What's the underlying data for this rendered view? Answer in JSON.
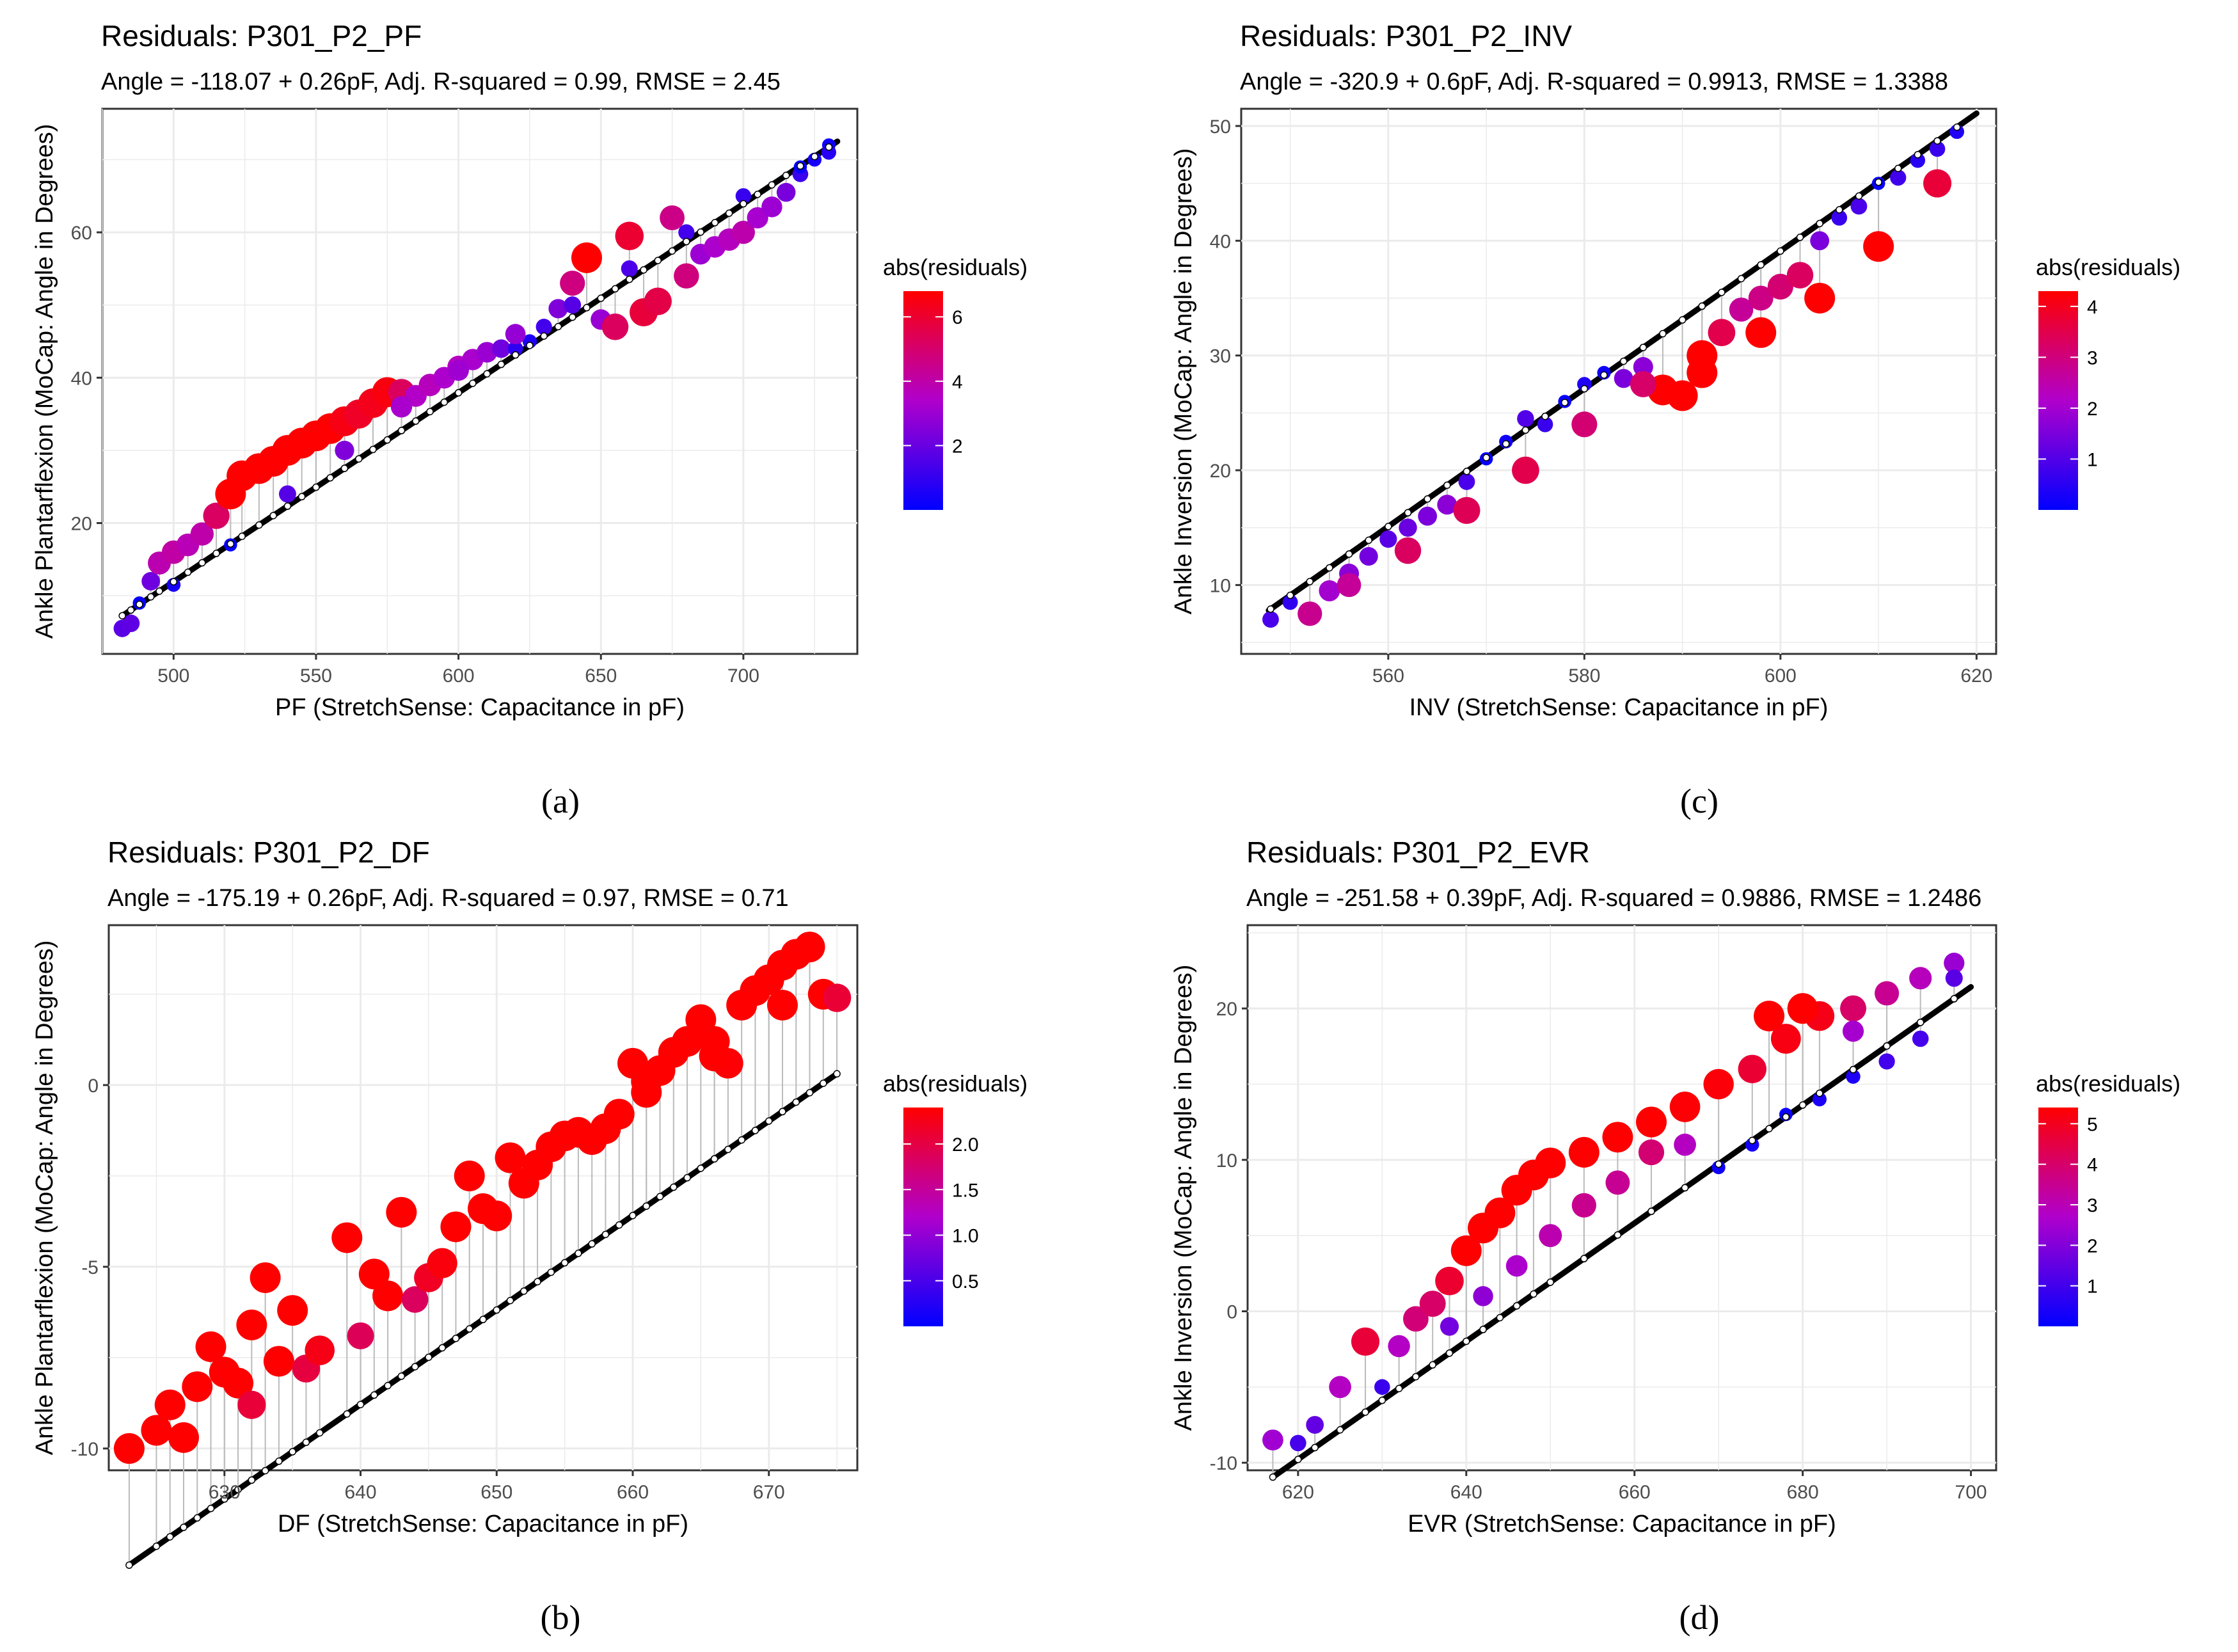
{
  "colors": {
    "low": "#0000FF",
    "mid": "#B000CC",
    "high": "#FF0000",
    "fit": "#000000",
    "grid": "#EBEBEB",
    "frame": "#333333"
  },
  "chart_data": [
    {
      "id": "a",
      "panel_label": "(a)",
      "type": "scatter",
      "title": "Residuals: P301_P2_PF",
      "subtitle": "Angle = -118.07 + 0.26pF, Adj. R-squared = 0.99, RMSE = 2.45",
      "xlabel": "PF (StretchSense: Capacitance in pF)",
      "ylabel": "Ankle Plantarflexion (MoCap: Angle in Degrees)",
      "xlim": [
        475,
        740
      ],
      "ylim": [
        2,
        77
      ],
      "xticks": [
        500,
        550,
        600,
        650,
        700
      ],
      "xtick_labels": [
        "500",
        "550",
        "600",
        "650",
        "700"
      ],
      "yticks": [
        20,
        40,
        60
      ],
      "ytick_labels": [
        "20",
        "40",
        "60"
      ],
      "fit": {
        "intercept": -118.07,
        "slope": 0.26,
        "x_range": [
          482,
          733
        ]
      },
      "legend": {
        "title": "abs(residuals)",
        "max": 6.8,
        "ticks": [
          2,
          4,
          6
        ],
        "tick_labels": [
          "2",
          "4",
          "6"
        ]
      },
      "points": [
        [
          482,
          5.5
        ],
        [
          485,
          6.2
        ],
        [
          488,
          9
        ],
        [
          492,
          12
        ],
        [
          495,
          14.5
        ],
        [
          500,
          16
        ],
        [
          505,
          17
        ],
        [
          510,
          18.5
        ],
        [
          515,
          21
        ],
        [
          520,
          24
        ],
        [
          524,
          26.5
        ],
        [
          530,
          27.5
        ],
        [
          535,
          28.5
        ],
        [
          540,
          30
        ],
        [
          545,
          31
        ],
        [
          550,
          32
        ],
        [
          555,
          33
        ],
        [
          560,
          34
        ],
        [
          565,
          35
        ],
        [
          570,
          36.5
        ],
        [
          575,
          38
        ],
        [
          580,
          38
        ],
        [
          585,
          37.5
        ],
        [
          590,
          39
        ],
        [
          595,
          40
        ],
        [
          600,
          41.5
        ],
        [
          605,
          42.5
        ],
        [
          610,
          43.5
        ],
        [
          615,
          44
        ],
        [
          620,
          44
        ],
        [
          625,
          45
        ],
        [
          630,
          47
        ],
        [
          635,
          49.5
        ],
        [
          640,
          53
        ],
        [
          645,
          56.5
        ],
        [
          650,
          48
        ],
        [
          655,
          47
        ],
        [
          660,
          59.5
        ],
        [
          665,
          49
        ],
        [
          670,
          50.5
        ],
        [
          675,
          62
        ],
        [
          680,
          54
        ],
        [
          685,
          57
        ],
        [
          690,
          58
        ],
        [
          695,
          59
        ],
        [
          700,
          60
        ],
        [
          705,
          62
        ],
        [
          710,
          63.5
        ],
        [
          715,
          65.5
        ],
        [
          720,
          68
        ],
        [
          725,
          70
        ],
        [
          730,
          72
        ],
        [
          500,
          11.5
        ],
        [
          520,
          17
        ],
        [
          540,
          24
        ],
        [
          560,
          30
        ],
        [
          580,
          36
        ],
        [
          600,
          41
        ],
        [
          620,
          46
        ],
        [
          640,
          50
        ],
        [
          660,
          55
        ],
        [
          680,
          60
        ],
        [
          700,
          65
        ],
        [
          720,
          69
        ],
        [
          730,
          71
        ]
      ]
    },
    {
      "id": "c",
      "panel_label": "(c)",
      "type": "scatter",
      "title": "Residuals: P301_P2_INV",
      "subtitle": "Angle = -320.9 + 0.6pF, Adj. R-squared = 0.9913, RMSE = 1.3388",
      "xlabel": "INV (StretchSense: Capacitance in pF)",
      "ylabel": "Ankle Inversion (MoCap: Angle in Degrees)",
      "xlim": [
        545,
        622
      ],
      "ylim": [
        4,
        51.5
      ],
      "xticks": [
        560,
        580,
        600,
        620
      ],
      "xtick_labels": [
        "560",
        "580",
        "600",
        "620"
      ],
      "yticks": [
        10,
        20,
        30,
        40,
        50
      ],
      "ytick_labels": [
        "10",
        "20",
        "30",
        "40",
        "50"
      ],
      "fit": {
        "intercept": -320.9,
        "slope": 0.6,
        "x_range": [
          547.8,
          620
        ]
      },
      "legend": {
        "title": "abs(residuals)",
        "max": 4.3,
        "ticks": [
          1,
          2,
          3,
          4
        ],
        "tick_labels": [
          "1",
          "2",
          "3",
          "4"
        ]
      },
      "points": [
        [
          548,
          7
        ],
        [
          550,
          8.5
        ],
        [
          552,
          7.5
        ],
        [
          554,
          9.5
        ],
        [
          556,
          11
        ],
        [
          558,
          12.5
        ],
        [
          560,
          14
        ],
        [
          562,
          15
        ],
        [
          564,
          16
        ],
        [
          566,
          17
        ],
        [
          568,
          19
        ],
        [
          570,
          21
        ],
        [
          572,
          22.5
        ],
        [
          574,
          24.5
        ],
        [
          576,
          24
        ],
        [
          578,
          26
        ],
        [
          580,
          27.5
        ],
        [
          582,
          28.5
        ],
        [
          584,
          28
        ],
        [
          586,
          29
        ],
        [
          588,
          27
        ],
        [
          590,
          26.5
        ],
        [
          592,
          30
        ],
        [
          594,
          32
        ],
        [
          596,
          34
        ],
        [
          598,
          35
        ],
        [
          600,
          36
        ],
        [
          602,
          37
        ],
        [
          604,
          40
        ],
        [
          606,
          42
        ],
        [
          608,
          43
        ],
        [
          610,
          45
        ],
        [
          612,
          45.5
        ],
        [
          614,
          47
        ],
        [
          616,
          48
        ],
        [
          618,
          49.5
        ],
        [
          556,
          10
        ],
        [
          562,
          13
        ],
        [
          568,
          16.5
        ],
        [
          574,
          20
        ],
        [
          580,
          24
        ],
        [
          586,
          27.5
        ],
        [
          592,
          28.5
        ],
        [
          598,
          32
        ],
        [
          604,
          35
        ],
        [
          610,
          39.5
        ],
        [
          616,
          45
        ]
      ]
    },
    {
      "id": "b",
      "panel_label": "(b)",
      "type": "scatter",
      "title": "Residuals: P301_P2_DF",
      "subtitle": "Angle = -175.19 + 0.26pF, Adj. R-squared = 0.97, RMSE = 0.71",
      "xlabel": "DF (StretchSense: Capacitance in pF)",
      "ylabel": "Ankle Plantarflexion (MoCap: Angle in Degrees)",
      "xlim": [
        621.5,
        676.5
      ],
      "ylim": [
        -10.6,
        4.4
      ],
      "xticks": [
        630,
        640,
        650,
        660,
        670
      ],
      "xtick_labels": [
        "630",
        "640",
        "650",
        "660",
        "670"
      ],
      "yticks": [
        -10,
        -5,
        0
      ],
      "ytick_labels": [
        "-10",
        "-5",
        "0"
      ],
      "fit": {
        "intercept": -175.19,
        "slope": 0.26,
        "x_range": [
          623,
          675
        ]
      },
      "legend": {
        "title": "abs(residuals)",
        "max": 2.4,
        "ticks": [
          0.5,
          1.0,
          1.5,
          2.0
        ],
        "tick_labels": [
          "0.5",
          "1.0",
          "1.5",
          "2.0"
        ]
      },
      "points": [
        [
          623,
          -10
        ],
        [
          625,
          -9.5
        ],
        [
          626,
          -8.8
        ],
        [
          627,
          -9.7
        ],
        [
          628,
          -8.3
        ],
        [
          629,
          -7.2
        ],
        [
          630,
          -7.9
        ],
        [
          631,
          -8.2
        ],
        [
          632,
          -8.8
        ],
        [
          633,
          -5.3
        ],
        [
          634,
          -7.6
        ],
        [
          635,
          -6.2
        ],
        [
          636,
          -7.8
        ],
        [
          637,
          -7.3
        ],
        [
          639,
          -4.2
        ],
        [
          640,
          -6.9
        ],
        [
          641,
          -5.2
        ],
        [
          642,
          -5.8
        ],
        [
          643,
          -3.5
        ],
        [
          644,
          -5.9
        ],
        [
          645,
          -5.3
        ],
        [
          646,
          -4.9
        ],
        [
          647,
          -3.9
        ],
        [
          648,
          -2.5
        ],
        [
          649,
          -3.4
        ],
        [
          650,
          -3.6
        ],
        [
          651,
          -2.0
        ],
        [
          652,
          -2.7
        ],
        [
          653,
          -2.2
        ],
        [
          654,
          -1.7
        ],
        [
          655,
          -1.4
        ],
        [
          656,
          -1.3
        ],
        [
          657,
          -1.5
        ],
        [
          658,
          -1.2
        ],
        [
          659,
          -0.8
        ],
        [
          660,
          0.6
        ],
        [
          661,
          -0.2
        ],
        [
          662,
          0.4
        ],
        [
          663,
          0.9
        ],
        [
          664,
          1.2
        ],
        [
          665,
          1.8
        ],
        [
          666,
          1.2
        ],
        [
          667,
          0.6
        ],
        [
          668,
          2.2
        ],
        [
          669,
          2.6
        ],
        [
          670,
          2.9
        ],
        [
          671,
          3.3
        ],
        [
          672,
          3.6
        ],
        [
          673,
          3.8
        ],
        [
          674,
          2.5
        ],
        [
          675,
          2.4
        ],
        [
          661,
          0.1
        ],
        [
          666,
          0.8
        ],
        [
          671,
          2.2
        ],
        [
          632,
          -6.6
        ]
      ]
    },
    {
      "id": "d",
      "panel_label": "(d)",
      "type": "scatter",
      "title": "Residuals: P301_P2_EVR",
      "subtitle": "Angle = -251.58 + 0.39pF, Adj. R-squared = 0.9886, RMSE = 1.2486",
      "xlabel": "EVR (StretchSense: Capacitance in pF)",
      "ylabel": "Ankle Inversion (MoCap: Angle in Degrees)",
      "xlim": [
        614,
        703
      ],
      "ylim": [
        -10.5,
        25.5
      ],
      "xticks": [
        620,
        640,
        660,
        680,
        700
      ],
      "xtick_labels": [
        "620",
        "640",
        "660",
        "680",
        "700"
      ],
      "yticks": [
        -10,
        0,
        10,
        20
      ],
      "ytick_labels": [
        "-10",
        "0",
        "10",
        "20"
      ],
      "fit": {
        "intercept": -251.58,
        "slope": 0.39,
        "x_range": [
          617,
          700
        ]
      },
      "legend": {
        "title": "abs(residuals)",
        "max": 5.4,
        "ticks": [
          1,
          2,
          3,
          4,
          5
        ],
        "tick_labels": [
          "1",
          "2",
          "3",
          "4",
          "5"
        ]
      },
      "points": [
        [
          617,
          -8.5
        ],
        [
          620,
          -8.7
        ],
        [
          622,
          -7.5
        ],
        [
          625,
          -5
        ],
        [
          628,
          -2
        ],
        [
          630,
          -5
        ],
        [
          632,
          -2.3
        ],
        [
          634,
          -0.5
        ],
        [
          636,
          0.5
        ],
        [
          638,
          2
        ],
        [
          640,
          4
        ],
        [
          642,
          5.5
        ],
        [
          644,
          6.5
        ],
        [
          646,
          8
        ],
        [
          648,
          9
        ],
        [
          650,
          9.8
        ],
        [
          654,
          10.5
        ],
        [
          658,
          11.5
        ],
        [
          662,
          12.5
        ],
        [
          666,
          13.5
        ],
        [
          670,
          15
        ],
        [
          674,
          16
        ],
        [
          678,
          18
        ],
        [
          682,
          19.5
        ],
        [
          686,
          20
        ],
        [
          690,
          21
        ],
        [
          694,
          22
        ],
        [
          698,
          23
        ],
        [
          638,
          -1
        ],
        [
          642,
          1
        ],
        [
          646,
          3
        ],
        [
          650,
          5
        ],
        [
          654,
          7
        ],
        [
          658,
          8.5
        ],
        [
          662,
          10.5
        ],
        [
          666,
          11
        ],
        [
          670,
          9.5
        ],
        [
          674,
          11
        ],
        [
          678,
          13
        ],
        [
          682,
          14
        ],
        [
          686,
          15.5
        ],
        [
          690,
          16.5
        ],
        [
          694,
          18
        ],
        [
          698,
          22
        ],
        [
          676,
          19.5
        ],
        [
          680,
          20
        ],
        [
          686,
          18.5
        ]
      ]
    }
  ]
}
